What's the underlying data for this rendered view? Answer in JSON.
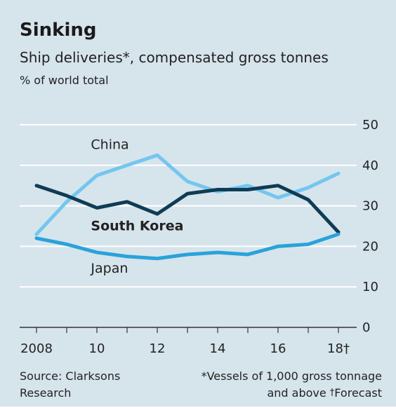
{
  "title": "Sinking",
  "subtitle": "Ship deliveries*, compensated gross tonnes",
  "unit_label": "% of world total",
  "footnotes": {
    "source_line1": "Source: Clarksons",
    "source_line2": "Research",
    "note_line1": "*Vessels of 1,000 gross tonnage",
    "note_line2": "and above",
    "forecast_mark": "†",
    "forecast_word": "Forecast"
  },
  "colors": {
    "background": "#d6e4ec",
    "gridline": "#ffffff",
    "axis": "#333333",
    "china": "#74c6ef",
    "south_korea": "#0f3c54",
    "japan": "#2aa2da"
  },
  "chart_data": {
    "type": "line",
    "x": [
      2008,
      2009,
      2010,
      2011,
      2012,
      2013,
      2014,
      2015,
      2016,
      2017,
      2018
    ],
    "xticks": [
      2008,
      2010,
      2012,
      2014,
      2016,
      2018
    ],
    "xtick_labels": [
      "2008",
      "10",
      "12",
      "14",
      "16",
      "18†"
    ],
    "xlim": [
      2008,
      2018
    ],
    "yticks": [
      0,
      10,
      20,
      30,
      40,
      50
    ],
    "ylim": [
      0,
      50
    ],
    "grid": true,
    "yaxis_side": "right",
    "series": [
      {
        "name": "China",
        "color_key": "china",
        "values": [
          23,
          31,
          37.5,
          40,
          42.5,
          36,
          33.5,
          35,
          32,
          34.5,
          38
        ]
      },
      {
        "name": "South Korea",
        "color_key": "south_korea",
        "bold_label": true,
        "values": [
          35,
          32.5,
          29.5,
          31,
          28,
          33,
          34,
          34,
          35,
          31.5,
          23.5
        ]
      },
      {
        "name": "Japan",
        "color_key": "japan",
        "values": [
          22,
          20.5,
          18.5,
          17.5,
          17,
          18,
          18.5,
          18,
          20,
          20.5,
          23
        ]
      }
    ],
    "labels": [
      {
        "series": "China",
        "x": 2009.8,
        "y": 44
      },
      {
        "series": "South Korea",
        "x": 2009.8,
        "y": 24
      },
      {
        "series": "Japan",
        "x": 2009.8,
        "y": 13.5
      }
    ]
  }
}
